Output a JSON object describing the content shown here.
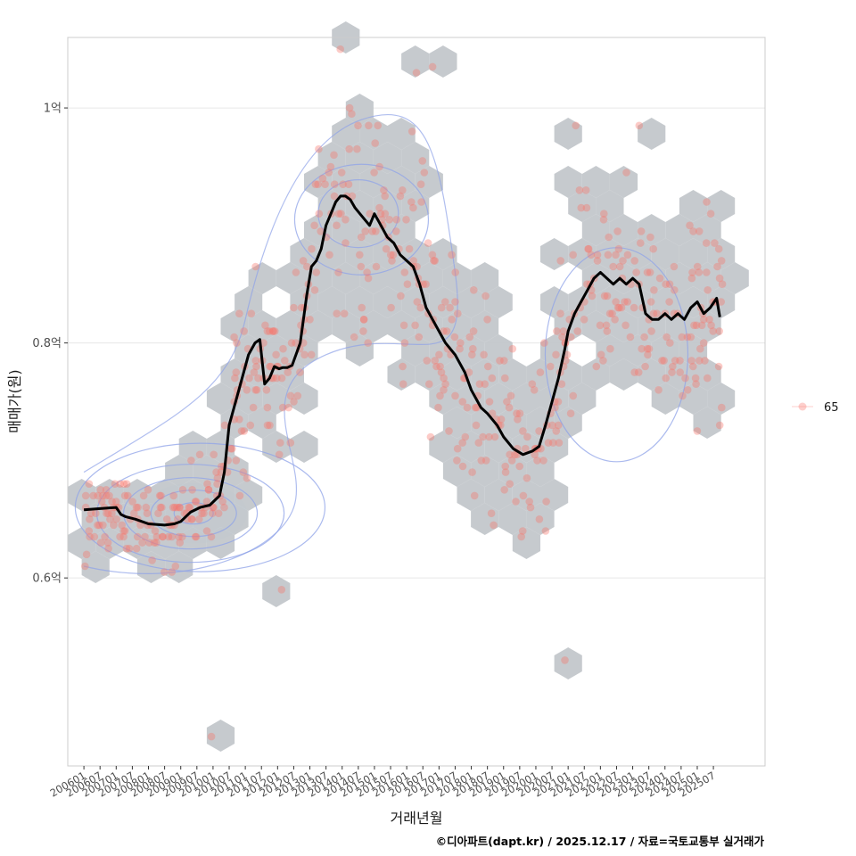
{
  "chart_data": {
    "type": "scatter",
    "title": "",
    "xlabel": "거래년월",
    "ylabel": "매매가(원)",
    "ylim": [
      0.44,
      1.06
    ],
    "y_unit": "억",
    "yticks": [
      {
        "value": 0.6,
        "label": "0.6억"
      },
      {
        "value": 0.8,
        "label": "0.8억"
      },
      {
        "value": 1.0,
        "label": "1억"
      }
    ],
    "xlim": [
      2005.5,
      2027.1
    ],
    "xticks": [
      "200601",
      "200607",
      "200701",
      "200707",
      "200801",
      "200807",
      "200901",
      "200907",
      "201001",
      "201007",
      "201101",
      "201107",
      "201201",
      "201207",
      "201301",
      "201307",
      "201401",
      "201407",
      "201501",
      "201507",
      "201601",
      "201607",
      "201701",
      "201707",
      "201801",
      "201807",
      "201901",
      "201907",
      "202001",
      "202007",
      "202101",
      "202107",
      "202201",
      "202207",
      "202301",
      "202307",
      "202401",
      "202407",
      "202501",
      "202507"
    ],
    "grid": true,
    "legend": {
      "position": "right",
      "entries": [
        {
          "label": "65",
          "color": "#f8766d"
        }
      ]
    },
    "layers": [
      "hexbin density",
      "2d density contours",
      "scatter points",
      "moving average line"
    ],
    "colors": {
      "point": "#f8766d",
      "hex": "#c3c7cb",
      "contour": "#8fa3e8",
      "contour_fill": "#bfe1f5",
      "line": "#000000",
      "grid": "#e6e6e6",
      "border": "#cccccc"
    },
    "trend_line": {
      "name": "moving average",
      "x": [
        2006.0,
        2006.5,
        2007.0,
        2007.15,
        2007.3,
        2007.6,
        2008.0,
        2008.5,
        2008.8,
        2009.0,
        2009.3,
        2009.6,
        2009.9,
        2010.2,
        2010.35,
        2010.5,
        2010.8,
        2011.1,
        2011.3,
        2011.45,
        2011.6,
        2011.75,
        2011.9,
        2012.05,
        2012.15,
        2012.3,
        2012.45,
        2012.7,
        2012.9,
        2013.05,
        2013.2,
        2013.35,
        2013.5,
        2013.65,
        2013.8,
        2013.95,
        2014.1,
        2014.25,
        2014.4,
        2014.55,
        2014.7,
        2014.85,
        2015.0,
        2015.2,
        2015.4,
        2015.6,
        2015.8,
        2016.0,
        2016.2,
        2016.4,
        2016.6,
        2016.8,
        2017.0,
        2017.2,
        2017.5,
        2017.8,
        2018.0,
        2018.3,
        2018.5,
        2018.8,
        2019.0,
        2019.3,
        2019.6,
        2019.9,
        2020.1,
        2020.3,
        2020.5,
        2020.7,
        2020.9,
        2021.0,
        2021.2,
        2021.4,
        2021.6,
        2021.8,
        2022.0,
        2022.2,
        2022.4,
        2022.6,
        2022.8,
        2023.0,
        2023.2,
        2023.4,
        2023.6,
        2023.8,
        2024.0,
        2024.2,
        2024.4,
        2024.6,
        2024.8,
        2025.0,
        2025.2,
        2025.4,
        2025.6,
        2025.7
      ],
      "y": [
        0.658,
        0.659,
        0.66,
        0.654,
        0.652,
        0.65,
        0.646,
        0.645,
        0.646,
        0.648,
        0.656,
        0.66,
        0.662,
        0.67,
        0.69,
        0.73,
        0.76,
        0.79,
        0.8,
        0.803,
        0.765,
        0.77,
        0.78,
        0.778,
        0.779,
        0.779,
        0.781,
        0.8,
        0.84,
        0.865,
        0.87,
        0.88,
        0.9,
        0.91,
        0.92,
        0.925,
        0.925,
        0.922,
        0.915,
        0.91,
        0.905,
        0.9,
        0.91,
        0.9,
        0.89,
        0.885,
        0.875,
        0.87,
        0.865,
        0.85,
        0.83,
        0.82,
        0.81,
        0.8,
        0.79,
        0.775,
        0.76,
        0.745,
        0.74,
        0.73,
        0.72,
        0.71,
        0.705,
        0.708,
        0.712,
        0.73,
        0.75,
        0.77,
        0.795,
        0.81,
        0.825,
        0.835,
        0.845,
        0.855,
        0.86,
        0.855,
        0.85,
        0.855,
        0.85,
        0.855,
        0.85,
        0.825,
        0.82,
        0.82,
        0.825,
        0.82,
        0.825,
        0.82,
        0.83,
        0.835,
        0.825,
        0.83,
        0.838,
        0.822
      ]
    }
  },
  "caption": "©디아파트(dapt.kr) / 2025.12.17 / 자료=국토교통부 실거래가"
}
